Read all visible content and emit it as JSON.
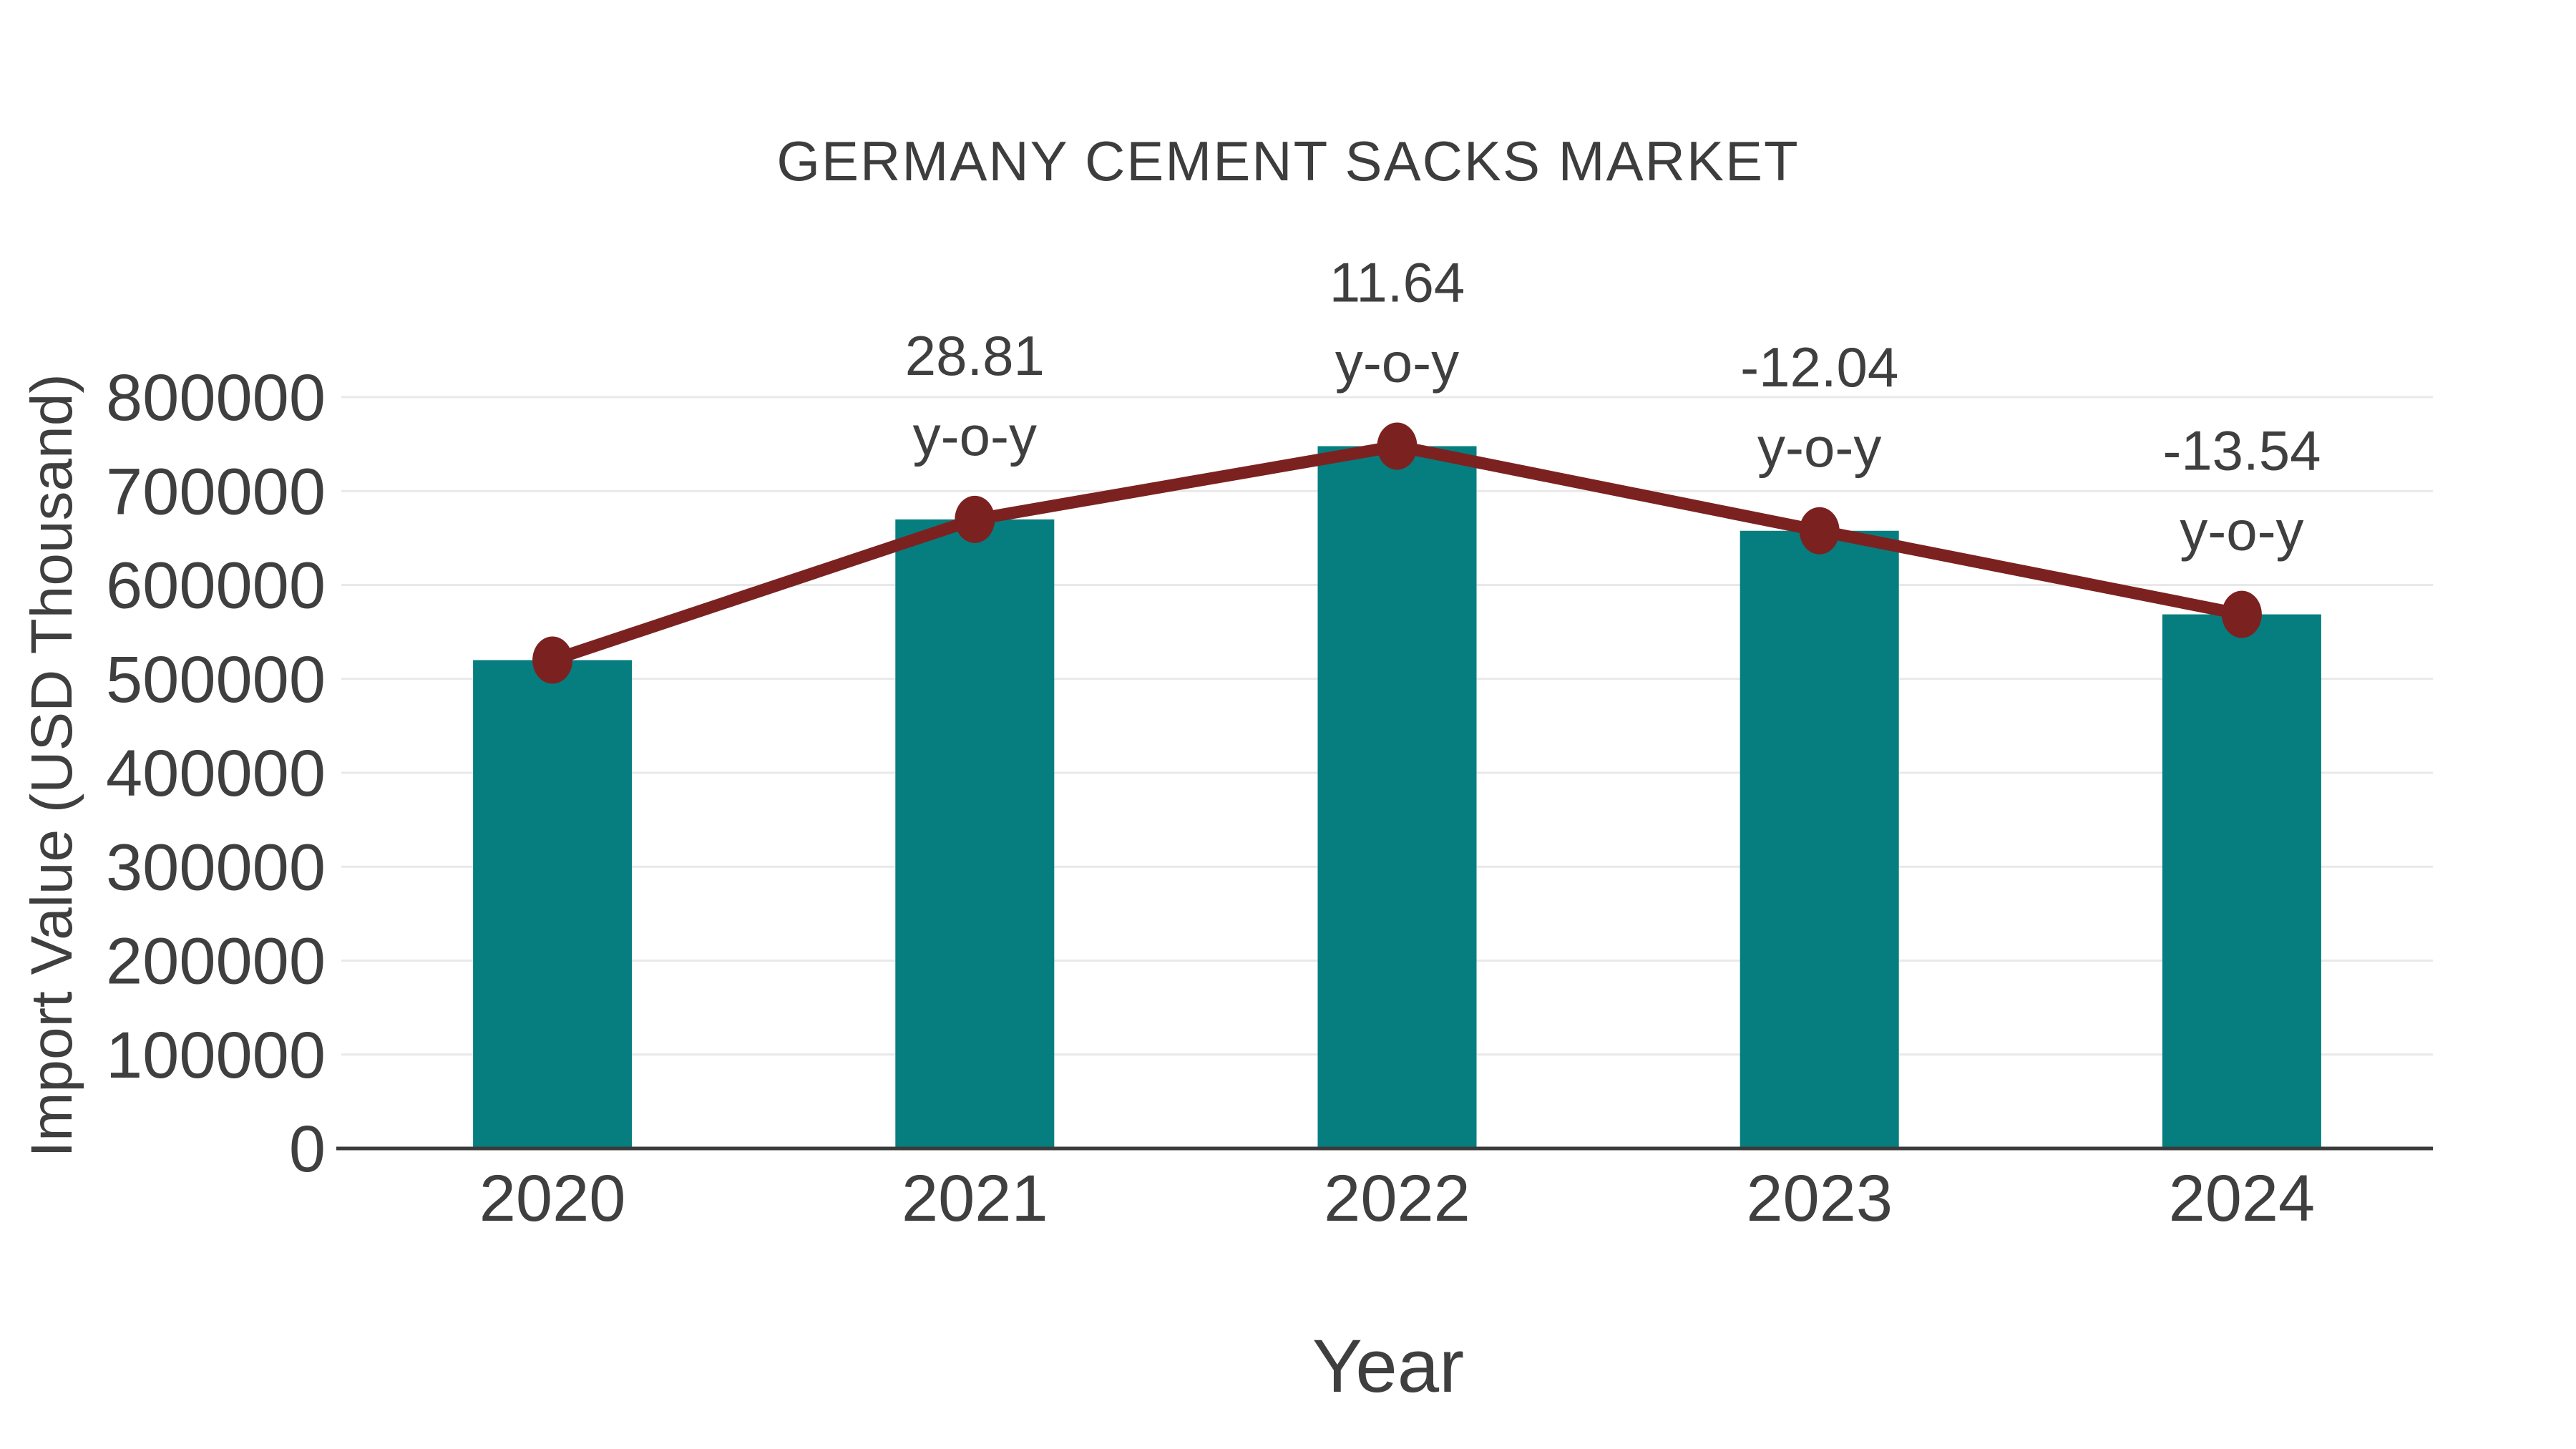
{
  "page": {
    "background": "#ffffff"
  },
  "style": {
    "bar_color": "#067e80",
    "line_color": "#7b2221",
    "text_color": "#3f3f3f",
    "title_color": "#3d3d3d",
    "grid_color": "#e9e9e9",
    "axis_color": "#3a3a3a",
    "background": "#ffffff"
  },
  "chart_data": {
    "type": "bar",
    "title": "GERMANY CEMENT SACKS MARKET",
    "xlabel": "Year",
    "ylabel": "Import Value (USD Thousand)",
    "categories": [
      "2020",
      "2021",
      "2022",
      "2023",
      "2024"
    ],
    "series": [
      {
        "name": "Import Value (USD Thousand)",
        "type": "bar",
        "color": "#067e80",
        "values": [
          520000,
          669800,
          747800,
          657700,
          568700
        ]
      },
      {
        "name": "Import Value trend",
        "type": "line",
        "color": "#7b2221",
        "values": [
          520000,
          669800,
          747800,
          657700,
          568700
        ]
      }
    ],
    "annotations": [
      {
        "category": "2021",
        "value_label": "28.81",
        "suffix_label": "y-o-y"
      },
      {
        "category": "2022",
        "value_label": "11.64",
        "suffix_label": "y-o-y"
      },
      {
        "category": "2023",
        "value_label": "-12.04",
        "suffix_label": "y-o-y"
      },
      {
        "category": "2024",
        "value_label": "-13.54",
        "suffix_label": "y-o-y"
      }
    ],
    "ylim": [
      0,
      800000
    ],
    "yticks": [
      0,
      100000,
      200000,
      300000,
      400000,
      500000,
      600000,
      700000,
      800000
    ],
    "grid": true,
    "legend_position": "none"
  }
}
